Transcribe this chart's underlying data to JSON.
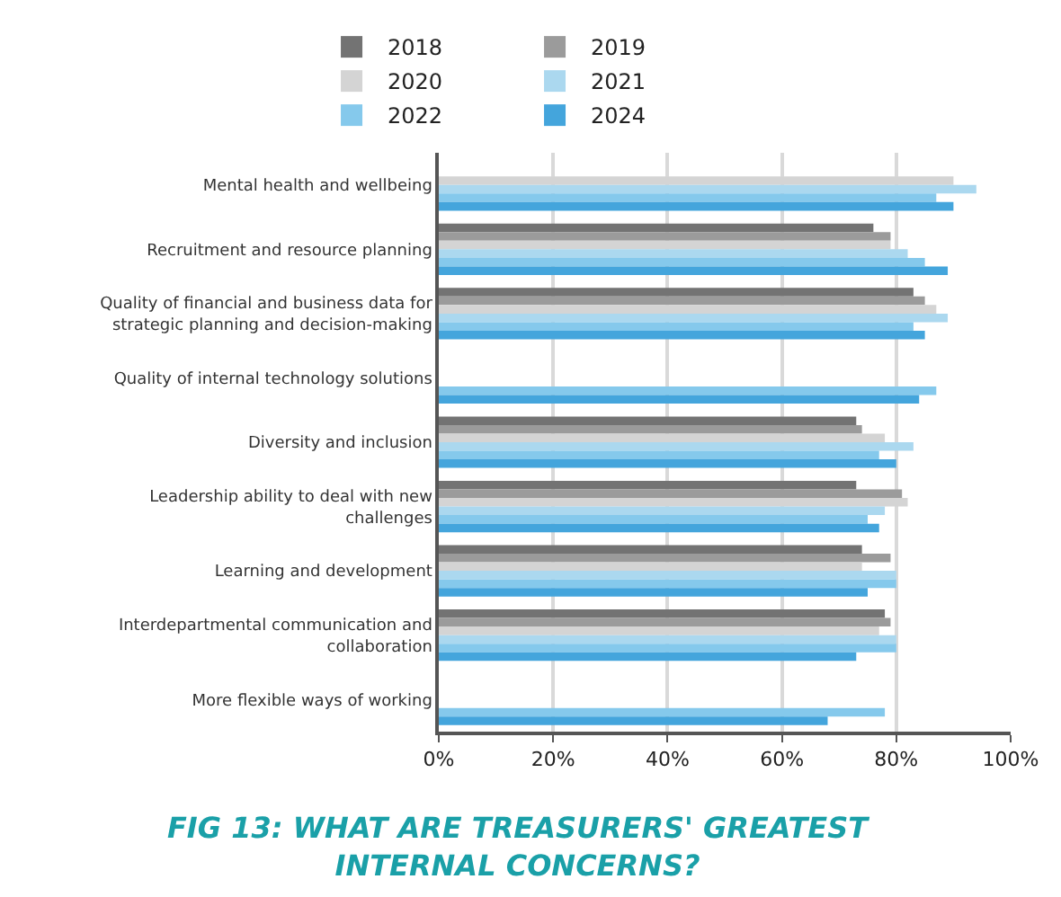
{
  "chart_data": {
    "type": "bar",
    "orientation": "horizontal",
    "title": "FIG 13: WHAT ARE TREASURERS' GREATEST INTERNAL CONCERNS?",
    "categories": [
      "Mental health and wellbeing",
      "Recruitment and resource planning",
      "Quality of financial and business data for strategic planning and decision-making",
      "Quality of internal technology solutions",
      "Diversity and inclusion",
      "Leadership ability to deal with new challenges",
      "Learning and development",
      "Interdepartmental communication and collaboration",
      "More flexible ways of working"
    ],
    "series": [
      {
        "name": "2018",
        "color": "#737373",
        "values": [
          null,
          76,
          83,
          null,
          73,
          73,
          74,
          78,
          null
        ]
      },
      {
        "name": "2019",
        "color": "#9b9b9b",
        "values": [
          null,
          79,
          85,
          null,
          74,
          81,
          79,
          79,
          null
        ]
      },
      {
        "name": "2020",
        "color": "#d4d4d4",
        "values": [
          90,
          79,
          87,
          null,
          78,
          82,
          74,
          77,
          null
        ]
      },
      {
        "name": "2021",
        "color": "#abd8ef",
        "values": [
          94,
          82,
          89,
          null,
          83,
          78,
          80,
          80,
          null
        ]
      },
      {
        "name": "2022",
        "color": "#85c9ec",
        "values": [
          87,
          85,
          83,
          87,
          77,
          75,
          80,
          80,
          78
        ]
      },
      {
        "name": "2024",
        "color": "#44a5dc",
        "values": [
          90,
          89,
          85,
          84,
          80,
          77,
          75,
          73,
          68
        ]
      }
    ],
    "xlim": [
      0,
      100
    ],
    "xticks": [
      {
        "value": 0,
        "label": "0%"
      },
      {
        "value": 20,
        "label": "20%"
      },
      {
        "value": 40,
        "label": "40%"
      },
      {
        "value": 60,
        "label": "60%"
      },
      {
        "value": 80,
        "label": "80%"
      },
      {
        "value": 100,
        "label": "100%"
      }
    ],
    "grid": "x",
    "legend": "top"
  }
}
